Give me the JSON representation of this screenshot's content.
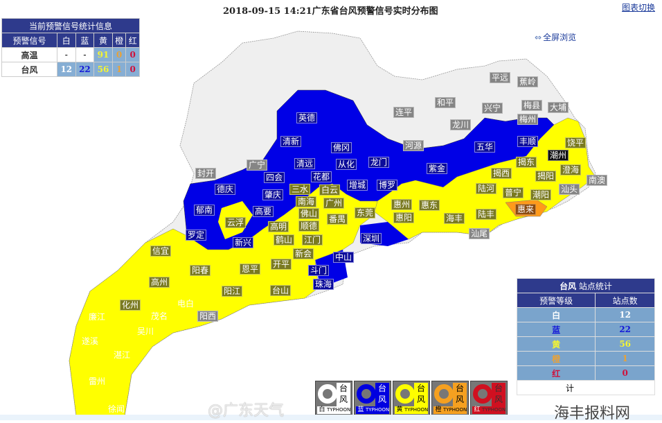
{
  "header": {
    "title": "2018-09-15 14:21广东省台风预警信号实时分布图",
    "switch_link": "图表切换",
    "fullscreen": "全屏浏览"
  },
  "summary_table": {
    "title": "当前预警信号统计信息",
    "columns": [
      "预警信号",
      "白",
      "蓝",
      "黄",
      "橙",
      "红"
    ],
    "rows": [
      {
        "name": "高温",
        "white": "-",
        "blue": "-",
        "yellow": "91",
        "orange": "0",
        "red": "0"
      },
      {
        "name": "台风",
        "white": "12",
        "blue": "22",
        "yellow": "56",
        "orange": "1",
        "red": "0"
      }
    ]
  },
  "station_table": {
    "title_bold": "台风",
    "title_rest": "站点统计",
    "columns": [
      "预警等级",
      "站点数"
    ],
    "rows": [
      {
        "level": "白",
        "count": "12"
      },
      {
        "level": "蓝",
        "count": "22"
      },
      {
        "level": "黄",
        "count": "56"
      },
      {
        "level": "橙",
        "count": "1"
      },
      {
        "level": "红",
        "count": "0"
      }
    ],
    "total_label": "计"
  },
  "colors": {
    "none": "#efefef",
    "white": "#ffffff",
    "blue": "#0000e6",
    "yellow": "#ffff00",
    "orange": "#ff9a1a",
    "red": "#e00000",
    "header": "#2e3a8c"
  },
  "map": {
    "labels": [
      "连平",
      "和平",
      "兴宁",
      "平远",
      "蕉岭",
      "梅县",
      "大埔",
      "梅州",
      "龙川",
      "河源",
      "广宁",
      "封开",
      "英德",
      "清新",
      "佛冈",
      "从化",
      "龙门",
      "清远",
      "四会",
      "花都",
      "增城",
      "博罗",
      "德庆",
      "肇庆",
      "郁南",
      "高要",
      "罗定",
      "新兴",
      "五华",
      "紫金",
      "丰顺",
      "深圳",
      "斗门",
      "珠海",
      "中山",
      "三水",
      "白云",
      "南海",
      "广州",
      "佛山",
      "顺德",
      "番禺",
      "东莞",
      "惠州",
      "惠阳",
      "惠东",
      "云浮",
      "高明",
      "鹤山",
      "江门",
      "新会",
      "开平",
      "恩平",
      "台山",
      "阳江",
      "阳西",
      "信宜",
      "阳春",
      "高州",
      "化州",
      "揭西",
      "揭东",
      "揭阳",
      "陆河",
      "普宁",
      "潮阳",
      "惠来",
      "陆丰",
      "海丰",
      "汕尾",
      "饶平",
      "澄海",
      "南澳",
      "汕头",
      "潮州",
      "廉江",
      "遂溪",
      "雷州",
      "徐闻",
      "电白",
      "茂名",
      "吴川",
      "湛江"
    ]
  },
  "legend": [
    {
      "name": "台风",
      "level": "白",
      "tag": "TYPHOON",
      "color": "#ffffff"
    },
    {
      "name": "台风",
      "level": "蓝",
      "tag": "TYPHOON",
      "color": "#0000e0"
    },
    {
      "name": "台风",
      "level": "黄",
      "tag": "TYPHOON",
      "color": "#ffff00"
    },
    {
      "name": "台风",
      "level": "橙",
      "tag": "TYPHOON",
      "color": "#f5a020"
    },
    {
      "name": "台风",
      "level": "红",
      "tag": "TYPHOON",
      "color": "#d01020"
    }
  ],
  "watermarks": {
    "weibo": "@广东天气",
    "site": "海丰报料网"
  }
}
